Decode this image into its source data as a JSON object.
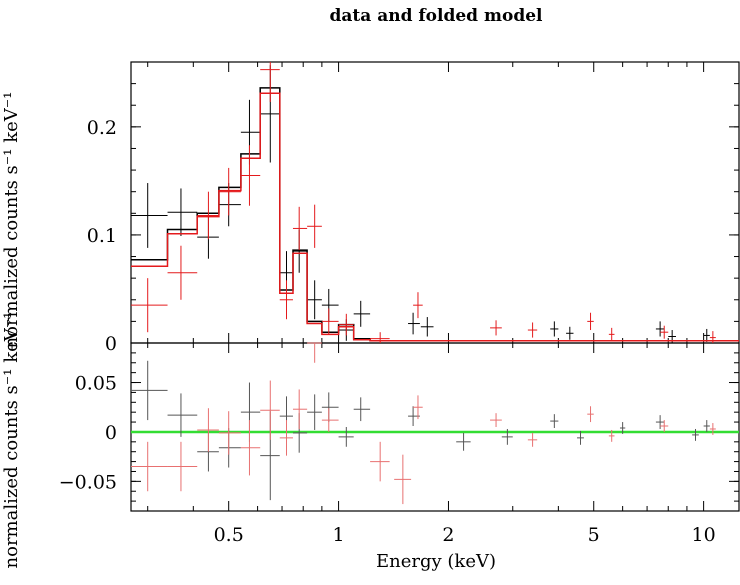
{
  "chart_data": {
    "title": "data and folded model",
    "xlabel": "Energy (keV)",
    "ylabel_top": "normalized counts s⁻¹ keV⁻¹",
    "ylabel_bottom": "normalized counts s⁻¹ keV⁻¹",
    "x_scale": "log",
    "xlim": [
      0.27,
      12.5
    ],
    "x_ticks": [
      0.5,
      1,
      2,
      5,
      10
    ],
    "x_tick_labels": [
      "0.5",
      "1",
      "2",
      "5",
      "10"
    ],
    "panels": [
      {
        "name": "spectrum",
        "type": "step",
        "ylim": [
          0,
          0.26
        ],
        "y_ticks": [
          0,
          0.1,
          0.2
        ],
        "y_tick_labels": [
          "0",
          "0.1",
          "0.2"
        ],
        "series": [
          {
            "color": "#000000",
            "data": [
              {
                "x": 0.3,
                "xlo": 0.27,
                "xhi": 0.34,
                "y": 0.118,
                "err": 0.03
              },
              {
                "x": 0.37,
                "xlo": 0.34,
                "xhi": 0.41,
                "y": 0.121,
                "err": 0.022
              },
              {
                "x": 0.44,
                "xlo": 0.41,
                "xhi": 0.47,
                "y": 0.098,
                "err": 0.02
              },
              {
                "x": 0.5,
                "xlo": 0.47,
                "xhi": 0.54,
                "y": 0.128,
                "err": 0.02
              },
              {
                "x": 0.57,
                "xlo": 0.54,
                "xhi": 0.61,
                "y": 0.195,
                "err": 0.03
              },
              {
                "x": 0.65,
                "xlo": 0.61,
                "xhi": 0.69,
                "y": 0.212,
                "err": 0.045
              },
              {
                "x": 0.72,
                "xlo": 0.69,
                "xhi": 0.75,
                "y": 0.065,
                "err": 0.02
              },
              {
                "x": 0.78,
                "xlo": 0.75,
                "xhi": 0.82,
                "y": 0.085,
                "err": 0.02
              },
              {
                "x": 0.86,
                "xlo": 0.82,
                "xhi": 0.9,
                "y": 0.04,
                "err": 0.018
              },
              {
                "x": 0.94,
                "xlo": 0.9,
                "xhi": 1.0,
                "y": 0.035,
                "err": 0.015
              },
              {
                "x": 1.05,
                "xlo": 1.0,
                "xhi": 1.1,
                "y": 0.012,
                "err": 0.01
              },
              {
                "x": 1.15,
                "xlo": 1.1,
                "xhi": 1.22,
                "y": 0.027,
                "err": 0.012
              },
              {
                "x": 1.6,
                "xlo": 1.55,
                "xhi": 1.67,
                "y": 0.018,
                "err": 0.01
              },
              {
                "x": 1.75,
                "xlo": 1.68,
                "xhi": 1.82,
                "y": 0.015,
                "err": 0.009
              },
              {
                "x": 3.9,
                "xlo": 3.8,
                "xhi": 4.0,
                "y": 0.013,
                "err": 0.007
              },
              {
                "x": 4.3,
                "xlo": 4.2,
                "xhi": 4.4,
                "y": 0.009,
                "err": 0.006
              },
              {
                "x": 7.6,
                "xlo": 7.4,
                "xhi": 7.8,
                "y": 0.013,
                "err": 0.007
              },
              {
                "x": 8.2,
                "xlo": 8.0,
                "xhi": 8.4,
                "y": 0.006,
                "err": 0.006
              },
              {
                "x": 10.2,
                "xlo": 10.0,
                "xhi": 10.4,
                "y": 0.007,
                "err": 0.006
              }
            ],
            "model": [
              {
                "xlo": 0.27,
                "xhi": 0.34,
                "y": 0.077
              },
              {
                "xlo": 0.34,
                "xhi": 0.41,
                "y": 0.105
              },
              {
                "xlo": 0.41,
                "xhi": 0.47,
                "y": 0.12
              },
              {
                "xlo": 0.47,
                "xhi": 0.54,
                "y": 0.144
              },
              {
                "xlo": 0.54,
                "xhi": 0.61,
                "y": 0.175
              },
              {
                "xlo": 0.61,
                "xhi": 0.69,
                "y": 0.236
              },
              {
                "xlo": 0.69,
                "xhi": 0.75,
                "y": 0.049
              },
              {
                "xlo": 0.75,
                "xhi": 0.82,
                "y": 0.086
              },
              {
                "xlo": 0.82,
                "xhi": 0.9,
                "y": 0.02
              },
              {
                "xlo": 0.9,
                "xhi": 1.0,
                "y": 0.01
              },
              {
                "xlo": 1.0,
                "xhi": 1.1,
                "y": 0.017
              },
              {
                "xlo": 1.1,
                "xhi": 1.22,
                "y": 0.004
              },
              {
                "xlo": 1.22,
                "xhi": 12.5,
                "y": 0.002
              }
            ]
          },
          {
            "color": "#e41a1c",
            "data": [
              {
                "x": 0.3,
                "xlo": 0.27,
                "xhi": 0.34,
                "y": 0.035,
                "err": 0.025
              },
              {
                "x": 0.37,
                "xlo": 0.34,
                "xhi": 0.41,
                "y": 0.065,
                "err": 0.025
              },
              {
                "x": 0.44,
                "xlo": 0.41,
                "xhi": 0.47,
                "y": 0.118,
                "err": 0.022
              },
              {
                "x": 0.5,
                "xlo": 0.47,
                "xhi": 0.54,
                "y": 0.14,
                "err": 0.022
              },
              {
                "x": 0.57,
                "xlo": 0.54,
                "xhi": 0.61,
                "y": 0.155,
                "err": 0.028
              },
              {
                "x": 0.65,
                "xlo": 0.61,
                "xhi": 0.69,
                "y": 0.253,
                "err": 0.03
              },
              {
                "x": 0.72,
                "xlo": 0.69,
                "xhi": 0.75,
                "y": 0.04,
                "err": 0.018
              },
              {
                "x": 0.78,
                "xlo": 0.75,
                "xhi": 0.82,
                "y": 0.106,
                "err": 0.02
              },
              {
                "x": 0.86,
                "xlo": 0.82,
                "xhi": 0.9,
                "y": 0.108,
                "err": 0.02
              },
              {
                "x": 0.94,
                "xlo": 0.9,
                "xhi": 1.0,
                "y": 0.02,
                "err": 0.012
              },
              {
                "x": 1.05,
                "xlo": 1.0,
                "xhi": 1.1,
                "y": 0.017,
                "err": 0.01
              },
              {
                "x": 1.3,
                "xlo": 1.22,
                "xhi": 1.38,
                "y": 0.004,
                "err": 0.006
              },
              {
                "x": 1.65,
                "xlo": 1.6,
                "xhi": 1.7,
                "y": 0.035,
                "err": 0.012
              },
              {
                "x": 2.7,
                "xlo": 2.6,
                "xhi": 2.8,
                "y": 0.014,
                "err": 0.007
              },
              {
                "x": 3.4,
                "xlo": 3.3,
                "xhi": 3.5,
                "y": 0.012,
                "err": 0.007
              },
              {
                "x": 4.9,
                "xlo": 4.8,
                "xhi": 5.0,
                "y": 0.02,
                "err": 0.008
              },
              {
                "x": 5.6,
                "xlo": 5.5,
                "xhi": 5.7,
                "y": 0.008,
                "err": 0.006
              },
              {
                "x": 7.8,
                "xlo": 7.6,
                "xhi": 8.0,
                "y": 0.01,
                "err": 0.006
              },
              {
                "x": 10.6,
                "xlo": 10.4,
                "xhi": 10.8,
                "y": 0.005,
                "err": 0.006
              }
            ],
            "model": [
              {
                "xlo": 0.27,
                "xhi": 0.34,
                "y": 0.071
              },
              {
                "xlo": 0.34,
                "xhi": 0.41,
                "y": 0.101
              },
              {
                "xlo": 0.41,
                "xhi": 0.47,
                "y": 0.117
              },
              {
                "xlo": 0.47,
                "xhi": 0.54,
                "y": 0.141
              },
              {
                "xlo": 0.54,
                "xhi": 0.61,
                "y": 0.171
              },
              {
                "xlo": 0.61,
                "xhi": 0.69,
                "y": 0.231
              },
              {
                "xlo": 0.69,
                "xhi": 0.75,
                "y": 0.046
              },
              {
                "xlo": 0.75,
                "xhi": 0.82,
                "y": 0.083
              },
              {
                "xlo": 0.82,
                "xhi": 0.9,
                "y": 0.018
              },
              {
                "xlo": 0.9,
                "xhi": 1.0,
                "y": 0.008
              },
              {
                "xlo": 1.0,
                "xhi": 1.1,
                "y": 0.015
              },
              {
                "xlo": 1.1,
                "xhi": 1.22,
                "y": 0.003
              },
              {
                "xlo": 1.22,
                "xhi": 12.5,
                "y": 0.002
              }
            ]
          }
        ]
      },
      {
        "name": "residuals",
        "type": "errorbar",
        "ylim": [
          -0.08,
          0.09
        ],
        "y_ticks": [
          -0.05,
          0,
          0.05
        ],
        "y_tick_labels": [
          "−0.05",
          "0",
          "0.05"
        ],
        "zero_line_color": "#33dd33",
        "series": [
          {
            "color": "#555555",
            "data": [
              {
                "x": 0.3,
                "xlo": 0.27,
                "xhi": 0.34,
                "y": 0.042,
                "err": 0.03
              },
              {
                "x": 0.37,
                "xlo": 0.34,
                "xhi": 0.41,
                "y": 0.017,
                "err": 0.022
              },
              {
                "x": 0.44,
                "xlo": 0.41,
                "xhi": 0.47,
                "y": -0.02,
                "err": 0.02
              },
              {
                "x": 0.5,
                "xlo": 0.47,
                "xhi": 0.54,
                "y": -0.016,
                "err": 0.02
              },
              {
                "x": 0.57,
                "xlo": 0.54,
                "xhi": 0.61,
                "y": 0.02,
                "err": 0.03
              },
              {
                "x": 0.65,
                "xlo": 0.61,
                "xhi": 0.69,
                "y": -0.024,
                "err": 0.045
              },
              {
                "x": 0.72,
                "xlo": 0.69,
                "xhi": 0.75,
                "y": 0.016,
                "err": 0.02
              },
              {
                "x": 0.78,
                "xlo": 0.75,
                "xhi": 0.82,
                "y": -0.001,
                "err": 0.02
              },
              {
                "x": 0.86,
                "xlo": 0.82,
                "xhi": 0.9,
                "y": 0.02,
                "err": 0.018
              },
              {
                "x": 0.94,
                "xlo": 0.9,
                "xhi": 1.0,
                "y": 0.025,
                "err": 0.015
              },
              {
                "x": 1.05,
                "xlo": 1.0,
                "xhi": 1.1,
                "y": -0.005,
                "err": 0.01
              },
              {
                "x": 1.15,
                "xlo": 1.1,
                "xhi": 1.22,
                "y": 0.023,
                "err": 0.012
              },
              {
                "x": 1.6,
                "xlo": 1.55,
                "xhi": 1.67,
                "y": 0.016,
                "err": 0.01
              },
              {
                "x": 2.2,
                "xlo": 2.1,
                "xhi": 2.3,
                "y": -0.01,
                "err": 0.009
              },
              {
                "x": 2.9,
                "xlo": 2.8,
                "xhi": 3.0,
                "y": -0.005,
                "err": 0.008
              },
              {
                "x": 3.9,
                "xlo": 3.8,
                "xhi": 4.0,
                "y": 0.011,
                "err": 0.007
              },
              {
                "x": 4.6,
                "xlo": 4.5,
                "xhi": 4.7,
                "y": -0.006,
                "err": 0.007
              },
              {
                "x": 6.0,
                "xlo": 5.9,
                "xhi": 6.1,
                "y": 0.004,
                "err": 0.006
              },
              {
                "x": 7.6,
                "xlo": 7.4,
                "xhi": 7.8,
                "y": 0.01,
                "err": 0.007
              },
              {
                "x": 9.5,
                "xlo": 9.3,
                "xhi": 9.7,
                "y": -0.003,
                "err": 0.006
              },
              {
                "x": 10.2,
                "xlo": 10.0,
                "xhi": 10.4,
                "y": 0.006,
                "err": 0.006
              }
            ]
          },
          {
            "color": "#e87070",
            "data": [
              {
                "x": 0.3,
                "xlo": 0.27,
                "xhi": 0.34,
                "y": -0.035,
                "err": 0.025
              },
              {
                "x": 0.37,
                "xlo": 0.34,
                "xhi": 0.41,
                "y": -0.035,
                "err": 0.025
              },
              {
                "x": 0.44,
                "xlo": 0.41,
                "xhi": 0.47,
                "y": 0.002,
                "err": 0.022
              },
              {
                "x": 0.5,
                "xlo": 0.47,
                "xhi": 0.54,
                "y": -0.001,
                "err": 0.022
              },
              {
                "x": 0.57,
                "xlo": 0.54,
                "xhi": 0.61,
                "y": -0.016,
                "err": 0.028
              },
              {
                "x": 0.65,
                "xlo": 0.61,
                "xhi": 0.69,
                "y": 0.022,
                "err": 0.03
              },
              {
                "x": 0.72,
                "xlo": 0.69,
                "xhi": 0.75,
                "y": -0.006,
                "err": 0.018
              },
              {
                "x": 0.78,
                "xlo": 0.75,
                "xhi": 0.82,
                "y": 0.023,
                "err": 0.02
              },
              {
                "x": 0.86,
                "xlo": 0.82,
                "xhi": 0.9,
                "y": 0.09,
                "err": 0.02
              },
              {
                "x": 0.94,
                "xlo": 0.9,
                "xhi": 1.0,
                "y": 0.012,
                "err": 0.012
              },
              {
                "x": 1.3,
                "xlo": 1.22,
                "xhi": 1.38,
                "y": -0.03,
                "err": 0.02
              },
              {
                "x": 1.5,
                "xlo": 1.42,
                "xhi": 1.58,
                "y": -0.048,
                "err": 0.025
              },
              {
                "x": 1.65,
                "xlo": 1.6,
                "xhi": 1.7,
                "y": 0.025,
                "err": 0.012
              },
              {
                "x": 2.7,
                "xlo": 2.6,
                "xhi": 2.8,
                "y": 0.012,
                "err": 0.007
              },
              {
                "x": 3.4,
                "xlo": 3.3,
                "xhi": 3.5,
                "y": -0.008,
                "err": 0.007
              },
              {
                "x": 4.9,
                "xlo": 4.8,
                "xhi": 5.0,
                "y": 0.018,
                "err": 0.008
              },
              {
                "x": 5.6,
                "xlo": 5.5,
                "xhi": 5.7,
                "y": -0.004,
                "err": 0.006
              },
              {
                "x": 7.8,
                "xlo": 7.6,
                "xhi": 8.0,
                "y": 0.006,
                "err": 0.006
              },
              {
                "x": 10.6,
                "xlo": 10.4,
                "xhi": 10.8,
                "y": 0.003,
                "err": 0.006
              }
            ]
          }
        ]
      }
    ]
  }
}
